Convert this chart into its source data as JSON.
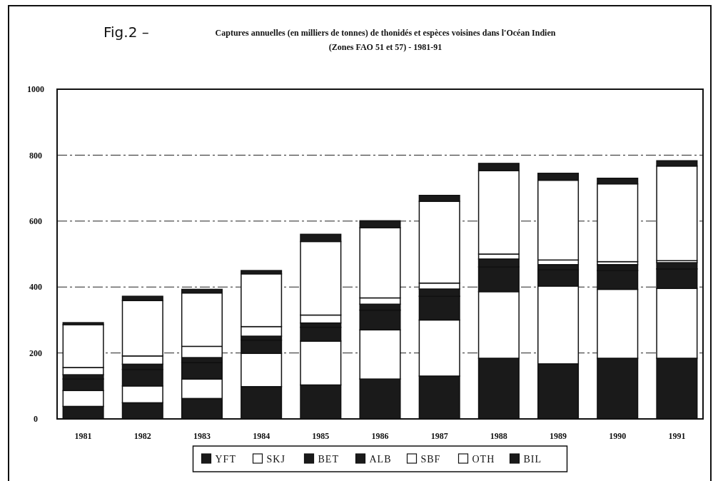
{
  "chart_data": {
    "type": "bar",
    "title": "Captures annuelles (en milliers de tonnes) de thonidés et espèces voisines dans l'Océan Indien",
    "subtitle": "(Zones FAO 51 et 57) - 1981-91",
    "annotations": [
      "Fig.2 –"
    ],
    "categories": [
      "1981",
      "1982",
      "1983",
      "1984",
      "1985",
      "1986",
      "1987",
      "1988",
      "1989",
      "1990",
      "1991"
    ],
    "stacked": true,
    "ylim": [
      0,
      1000
    ],
    "yticks": [
      0,
      200,
      400,
      600,
      800,
      1000
    ],
    "grid": "y",
    "legend": "bottom",
    "series": [
      {
        "name": "YFT",
        "color": "#1a1a1a",
        "values": [
          38,
          49,
          62,
          98,
          103,
          121,
          130,
          184,
          167,
          184,
          184
        ]
      },
      {
        "name": "SKJ",
        "color": "#ffffff",
        "values": [
          48,
          51,
          59,
          101,
          133,
          149,
          170,
          202,
          236,
          209,
          212
        ]
      },
      {
        "name": "BET",
        "color": "#1a1a1a",
        "values": [
          35,
          50,
          50,
          40,
          42,
          60,
          72,
          75,
          50,
          57,
          59
        ]
      },
      {
        "name": "ALB",
        "color": "#1a1a1a",
        "values": [
          13,
          16,
          15,
          12,
          13,
          18,
          22,
          24,
          15,
          18,
          19
        ]
      },
      {
        "name": "SBF",
        "color": "#ffffff",
        "values": [
          22,
          25,
          34,
          29,
          24,
          19,
          18,
          15,
          14,
          9,
          6
        ]
      },
      {
        "name": "OTH",
        "color": "#ffffff",
        "values": [
          130,
          168,
          162,
          160,
          223,
          213,
          248,
          253,
          242,
          236,
          287
        ]
      },
      {
        "name": "BIL",
        "color": "#1a1a1a",
        "values": [
          6,
          13,
          11,
          10,
          22,
          21,
          18,
          22,
          21,
          17,
          16
        ]
      }
    ]
  }
}
